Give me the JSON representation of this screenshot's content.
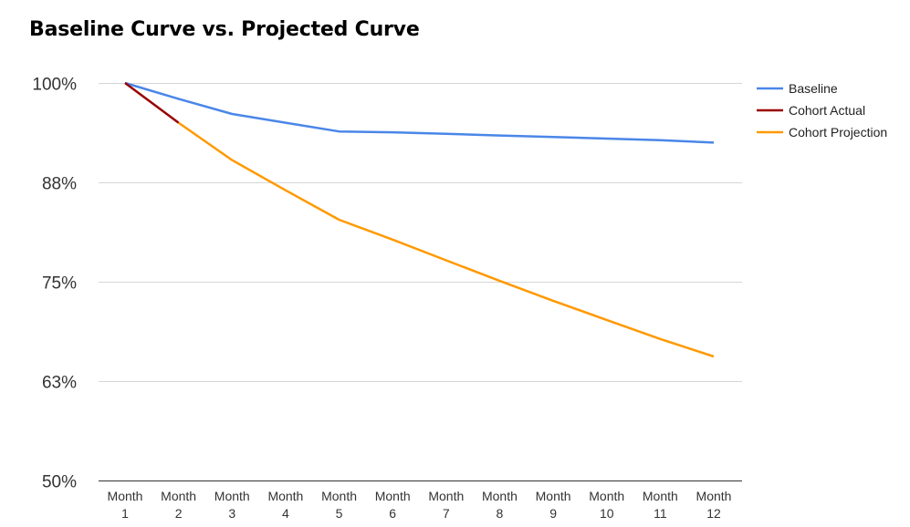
{
  "chart_data": {
    "type": "line",
    "title": "Baseline Curve vs. Projected Curve",
    "xlabel": "",
    "ylabel": "",
    "categories": [
      [
        "Month",
        "1"
      ],
      [
        "Month",
        "2"
      ],
      [
        "Month",
        "3"
      ],
      [
        "Month",
        "4"
      ],
      [
        "Month",
        "5"
      ],
      [
        "Month",
        "6"
      ],
      [
        "Month",
        "7"
      ],
      [
        "Month",
        "8"
      ],
      [
        "Month",
        "9"
      ],
      [
        "Month",
        "10"
      ],
      [
        "Month",
        "11"
      ],
      [
        "Month",
        "12"
      ]
    ],
    "y_ticks": [
      {
        "value": 50,
        "label": "50%"
      },
      {
        "value": 62.5,
        "label": "63%"
      },
      {
        "value": 75,
        "label": "75%"
      },
      {
        "value": 87.5,
        "label": "88%"
      },
      {
        "value": 100,
        "label": "100%"
      }
    ],
    "ylim": [
      50,
      100
    ],
    "grid": true,
    "legend_position": "right-top",
    "series": [
      {
        "name": "Baseline",
        "color": "#4a86e8",
        "values": [
          100,
          98.0,
          96.1,
          95.0,
          93.9,
          93.8,
          93.6,
          93.4,
          93.2,
          93.0,
          92.8,
          92.5
        ]
      },
      {
        "name": "Cohort Actual",
        "color": "#990000",
        "values": [
          100,
          95.0,
          null,
          null,
          null,
          null,
          null,
          null,
          null,
          null,
          null,
          null
        ]
      },
      {
        "name": "Cohort Projection",
        "color": "#ff9900",
        "values": [
          null,
          95.0,
          90.3,
          86.5,
          82.8,
          80.3,
          77.7,
          75.1,
          72.6,
          70.2,
          67.8,
          65.6
        ]
      }
    ]
  }
}
